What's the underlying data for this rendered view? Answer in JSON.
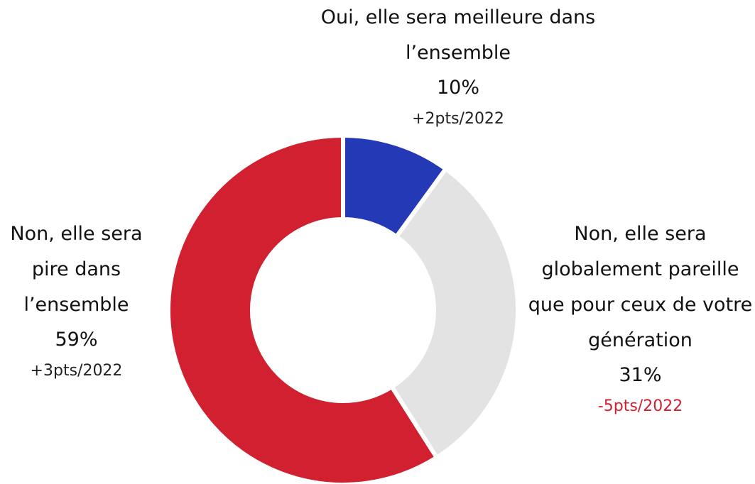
{
  "chart_data": {
    "type": "pie",
    "categories": [
      "Oui, elle sera meilleure dans l’ensemble",
      "Non, elle sera globalement pareille que pour ceux de votre génération",
      "Non, elle sera pire dans l’ensemble"
    ],
    "values": [
      10,
      31,
      59
    ],
    "value_labels": [
      "10%",
      "31%",
      "59%"
    ],
    "changes": [
      "+2pts/2022",
      "-5pts/2022",
      "+3pts/2022"
    ],
    "change_colors": [
      "#222222",
      "#d12030",
      "#222222"
    ],
    "colors": [
      "#2339b5",
      "#e3e3e3",
      "#d12030"
    ]
  }
}
